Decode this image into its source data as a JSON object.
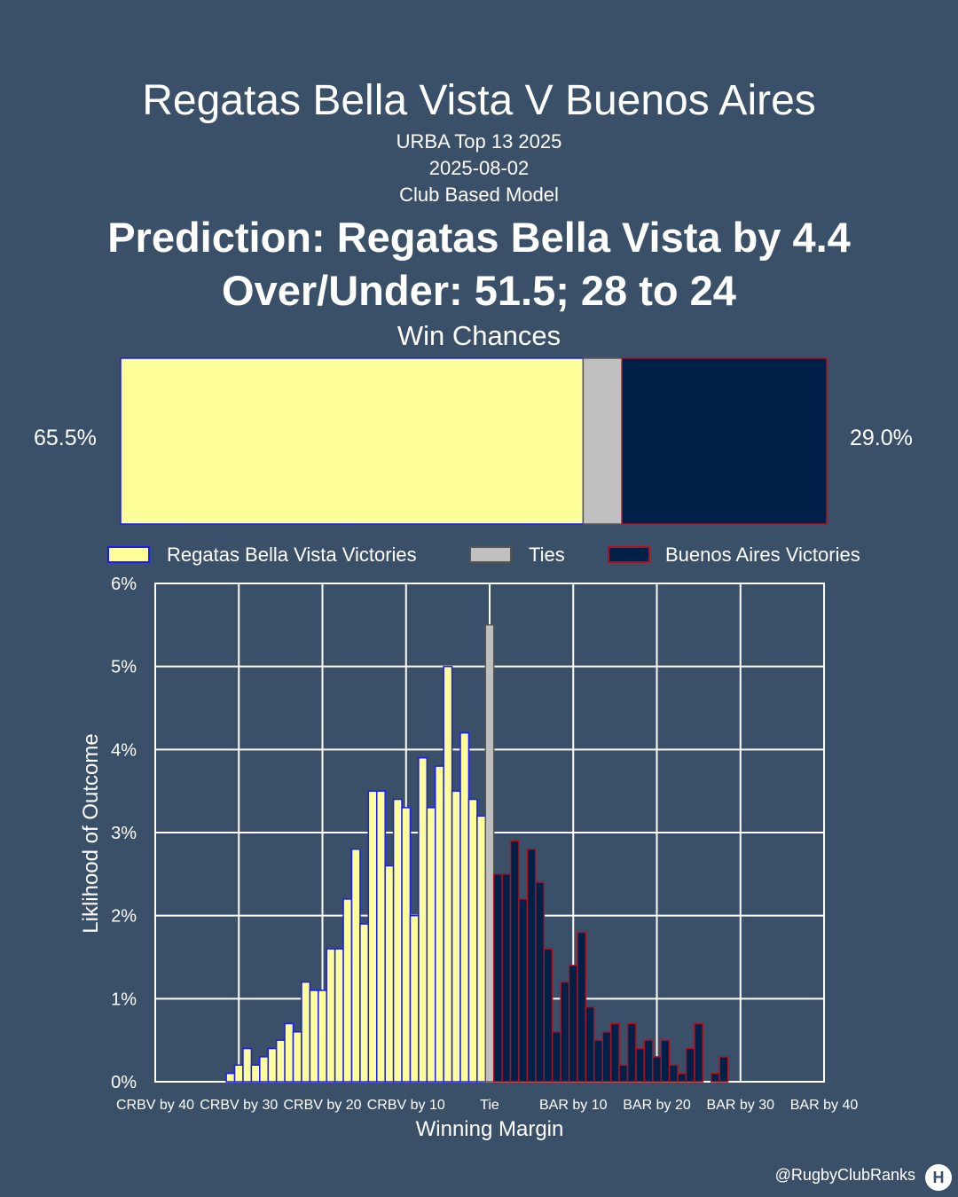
{
  "header": {
    "title": "Regatas Bella Vista V Buenos Aires",
    "competition": "URBA Top 13 2025",
    "date": "2025-08-02",
    "model": "Club Based Model",
    "prediction": "Prediction: Regatas Bella Vista by 4.4",
    "over_under": "Over/Under: 51.5; 28 to 24"
  },
  "watermark": "@RugbyClubRanks",
  "chart_data": [
    {
      "type": "bar",
      "orientation": "horizontal-stacked",
      "title": "Win Chances",
      "segments": [
        {
          "name": "Regatas Bella Vista Victories",
          "value": 65.5,
          "label": "65.5%",
          "color": "#ffff99",
          "edge": "#1a1aff"
        },
        {
          "name": "Ties",
          "value": 5.5,
          "label": "",
          "color": "#c0c0c0",
          "edge": "#555555"
        },
        {
          "name": "Buenos Aires Victories",
          "value": 29.0,
          "label": "29.0%",
          "color": "#002147",
          "edge": "#b01020"
        }
      ],
      "legend": {
        "placement": "top",
        "entries": [
          "Regatas Bella Vista Victories",
          "Ties",
          "Buenos Aires Victories"
        ]
      }
    },
    {
      "type": "bar",
      "xlabel": "Winning Margin",
      "ylabel": "Liklihood of Outcome",
      "xlim": [
        -40,
        40
      ],
      "ylim": [
        0,
        6
      ],
      "grid": true,
      "x_ticks": [
        {
          "value": -40,
          "label": "CRBV by 40"
        },
        {
          "value": -30,
          "label": "CRBV by 30"
        },
        {
          "value": -20,
          "label": "CRBV by 20"
        },
        {
          "value": -10,
          "label": "CRBV by 10"
        },
        {
          "value": 0,
          "label": "Tie"
        },
        {
          "value": 10,
          "label": "BAR by 10"
        },
        {
          "value": 20,
          "label": "BAR by 20"
        },
        {
          "value": 30,
          "label": "BAR by 30"
        },
        {
          "value": 40,
          "label": "BAR by 40"
        }
      ],
      "y_ticks": [
        {
          "value": 0,
          "label": "0%"
        },
        {
          "value": 1,
          "label": "1%"
        },
        {
          "value": 2,
          "label": "2%"
        },
        {
          "value": 3,
          "label": "3%"
        },
        {
          "value": 4,
          "label": "4%"
        },
        {
          "value": 5,
          "label": "5%"
        },
        {
          "value": 6,
          "label": "6%"
        }
      ],
      "series": [
        {
          "name": "Regatas Bella Vista Victories",
          "color": "#ffff99",
          "edge": "#1a1aff",
          "x": [
            -31,
            -30,
            -29,
            -28,
            -27,
            -26,
            -25,
            -24,
            -23,
            -22,
            -21,
            -20,
            -19,
            -18,
            -17,
            -16,
            -15,
            -14,
            -13,
            -12,
            -11,
            -10,
            -9,
            -8,
            -7,
            -6,
            -5,
            -4,
            -3,
            -2,
            -1
          ],
          "values": [
            0.1,
            0.2,
            0.4,
            0.2,
            0.3,
            0.4,
            0.5,
            0.7,
            0.6,
            1.2,
            1.1,
            1.1,
            1.6,
            1.6,
            2.2,
            2.8,
            1.9,
            3.5,
            3.5,
            2.6,
            3.4,
            3.3,
            2.0,
            3.9,
            3.3,
            3.8,
            5.0,
            3.5,
            4.2,
            3.4,
            3.2
          ]
        },
        {
          "name": "Ties",
          "color": "#c0c0c0",
          "edge": "#555555",
          "x": [
            0
          ],
          "values": [
            5.5
          ]
        },
        {
          "name": "Buenos Aires Victories",
          "color": "#002147",
          "edge": "#b01020",
          "x": [
            1,
            2,
            3,
            4,
            5,
            6,
            7,
            8,
            9,
            10,
            11,
            12,
            13,
            14,
            15,
            16,
            17,
            18,
            19,
            20,
            21,
            22,
            23,
            24,
            25,
            26,
            27,
            28
          ],
          "values": [
            2.5,
            2.5,
            2.9,
            2.2,
            2.8,
            2.4,
            1.6,
            0.6,
            1.2,
            1.4,
            1.8,
            0.9,
            0.5,
            0.6,
            0.7,
            0.2,
            0.7,
            0.4,
            0.5,
            0.3,
            0.5,
            0.2,
            0.1,
            0.4,
            0.7,
            0.0,
            0.1,
            0.3
          ]
        }
      ]
    }
  ]
}
